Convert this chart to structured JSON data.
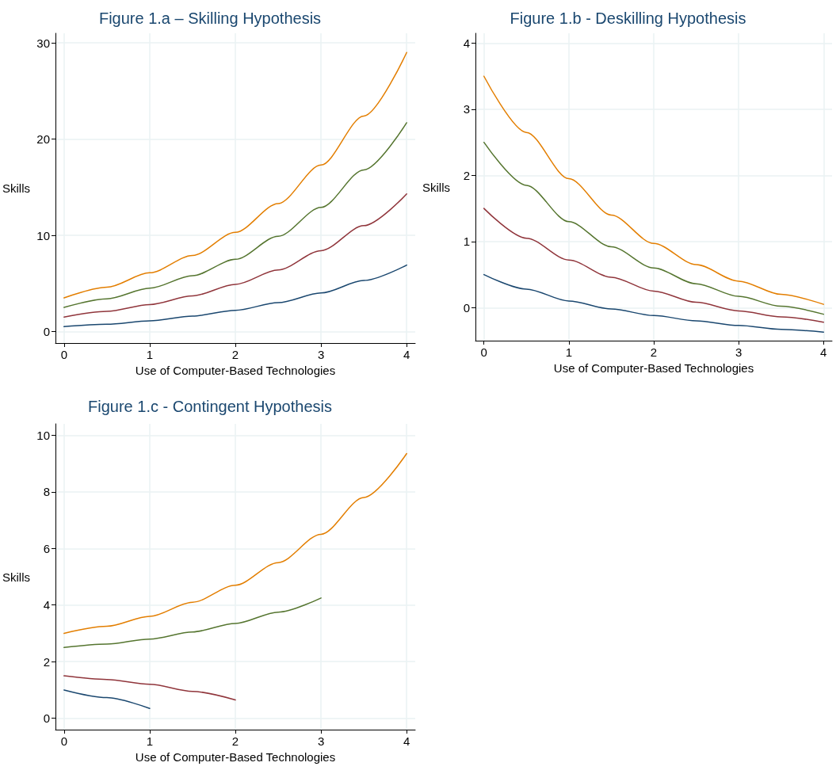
{
  "chart_data": [
    {
      "type": "line",
      "title": "Figure 1.a – Skilling Hypothesis",
      "xlabel": "Use of Computer-Based Technologies",
      "ylabel": "Skills",
      "x": [
        0,
        0.5,
        1,
        1.5,
        2,
        2.5,
        3,
        3.5,
        4
      ],
      "xlim": [
        -0.1,
        4.1
      ],
      "xticks": [
        0,
        1,
        2,
        3,
        4
      ],
      "ylim": [
        -1.2,
        31
      ],
      "yticks": [
        0,
        10,
        20,
        30
      ],
      "grid": true,
      "marker": "none",
      "line_style": "solid",
      "series": [
        {
          "color": "#1a476f",
          "values": [
            0.5,
            0.75,
            1.1,
            1.6,
            2.2,
            3.0,
            4.0,
            5.3,
            6.9
          ]
        },
        {
          "color": "#90353b",
          "values": [
            1.5,
            2.1,
            2.8,
            3.7,
            4.9,
            6.4,
            8.4,
            11.0,
            14.3
          ]
        },
        {
          "color": "#55752f",
          "values": [
            2.5,
            3.4,
            4.5,
            5.8,
            7.5,
            9.9,
            12.9,
            16.8,
            21.7
          ]
        },
        {
          "color": "#e37e00",
          "values": [
            3.5,
            4.6,
            6.1,
            7.9,
            10.3,
            13.3,
            17.3,
            22.4,
            29
          ]
        }
      ]
    },
    {
      "type": "line",
      "title": "Figure 1.b - Deskilling Hypothesis",
      "xlabel": "Use of Computer-Based Technologies",
      "ylabel": "Skills",
      "x": [
        0,
        0.5,
        1,
        1.5,
        2,
        2.5,
        3,
        3.5,
        4
      ],
      "xlim": [
        -0.1,
        4.1
      ],
      "xticks": [
        0,
        1,
        2,
        3,
        4
      ],
      "ylim": [
        -0.5,
        4.15
      ],
      "yticks": [
        0,
        1,
        2,
        3,
        4
      ],
      "grid": true,
      "marker": "none",
      "line_style": "solid",
      "series": [
        {
          "color": "#1a476f",
          "values": [
            0.5,
            0.28,
            0.1,
            -0.02,
            -0.12,
            -0.2,
            -0.27,
            -0.33,
            -0.37
          ]
        },
        {
          "color": "#90353b",
          "values": [
            1.5,
            1.05,
            0.72,
            0.46,
            0.25,
            0.08,
            -0.05,
            -0.14,
            -0.22
          ]
        },
        {
          "color": "#55752f",
          "values": [
            2.5,
            1.85,
            1.3,
            0.92,
            0.6,
            0.36,
            0.17,
            0.02,
            -0.1
          ]
        },
        {
          "color": "#e37e00",
          "values": [
            3.5,
            2.65,
            1.95,
            1.4,
            0.97,
            0.65,
            0.4,
            0.2,
            0.05
          ]
        }
      ]
    },
    {
      "type": "line",
      "title": "Figure 1.c - Contingent Hypothesis",
      "xlabel": "Use of Computer-Based Technologies",
      "ylabel": "Skills",
      "xlim": [
        -0.1,
        4.1
      ],
      "xticks": [
        0,
        1,
        2,
        3,
        4
      ],
      "ylim": [
        -0.4,
        10.4
      ],
      "yticks": [
        0,
        2,
        4,
        6,
        8,
        10
      ],
      "grid": true,
      "marker": "none",
      "line_style": "solid",
      "series": [
        {
          "color": "#1a476f",
          "x": [
            0,
            0.5,
            1
          ],
          "values": [
            1.0,
            0.73,
            0.35
          ]
        },
        {
          "color": "#90353b",
          "x": [
            0,
            0.5,
            1,
            1.5,
            2
          ],
          "values": [
            1.5,
            1.37,
            1.2,
            0.95,
            0.65
          ]
        },
        {
          "color": "#55752f",
          "x": [
            0,
            0.5,
            1,
            1.5,
            2,
            2.5,
            3
          ],
          "values": [
            2.5,
            2.62,
            2.8,
            3.05,
            3.35,
            3.75,
            4.25
          ]
        },
        {
          "color": "#e37e00",
          "x": [
            0,
            0.5,
            1,
            1.5,
            2,
            2.5,
            3,
            3.5,
            4
          ],
          "values": [
            3.0,
            3.25,
            3.6,
            4.1,
            4.7,
            5.5,
            6.5,
            7.8,
            9.35
          ]
        }
      ]
    }
  ]
}
